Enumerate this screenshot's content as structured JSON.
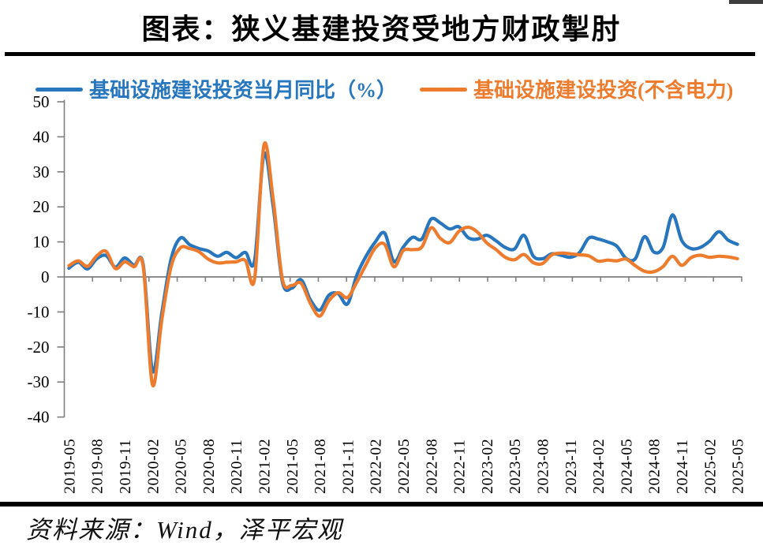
{
  "header": {
    "title": "图表：狭义基建投资受地方财政掣肘"
  },
  "legend": [
    {
      "label": "基础设施建设投资当月同比（%）",
      "color": "#2776BE"
    },
    {
      "label": "基础设施建设投资(不含电力)",
      "color": "#EE7C2F"
    }
  ],
  "footer": {
    "source": "资料来源：Wind，泽平宏观"
  },
  "chart_data": {
    "type": "line",
    "title": "图表：狭义基建投资受地方财政掣肘",
    "smoothed": true,
    "grid": "none",
    "legend_position": "top",
    "axis_color": "#7f7f7f",
    "ylim": [
      -40,
      50
    ],
    "y_ticks": [
      50,
      40,
      30,
      20,
      10,
      0,
      -10,
      -20,
      -30,
      -40
    ],
    "x_tick_labels": [
      "2019-05",
      "2019-08",
      "2019-11",
      "2020-02",
      "2020-05",
      "2020-08",
      "2020-11",
      "2021-02",
      "2021-05",
      "2021-08",
      "2021-11",
      "2022-02",
      "2022-05",
      "2022-08",
      "2022-11",
      "2023-02",
      "2023-05",
      "2023-08",
      "2023-11",
      "2024-02",
      "2024-05",
      "2024-08",
      "2024-11",
      "2025-02",
      "2025-05"
    ],
    "x": [
      "2019-05",
      "2019-06",
      "2019-07",
      "2019-08",
      "2019-09",
      "2019-10",
      "2019-11",
      "2019-12",
      "2020-01",
      "2020-02",
      "2020-03",
      "2020-04",
      "2020-05",
      "2020-06",
      "2020-07",
      "2020-08",
      "2020-09",
      "2020-10",
      "2020-11",
      "2020-12",
      "2021-01",
      "2021-02",
      "2021-03",
      "2021-04",
      "2021-05",
      "2021-06",
      "2021-07",
      "2021-08",
      "2021-09",
      "2021-10",
      "2021-11",
      "2021-12",
      "2022-01",
      "2022-02",
      "2022-03",
      "2022-04",
      "2022-05",
      "2022-06",
      "2022-07",
      "2022-08",
      "2022-09",
      "2022-10",
      "2022-11",
      "2022-12",
      "2023-01",
      "2023-02",
      "2023-03",
      "2023-04",
      "2023-05",
      "2023-06",
      "2023-07",
      "2023-08",
      "2023-09",
      "2023-10",
      "2023-11",
      "2023-12",
      "2024-01",
      "2024-02",
      "2024-03",
      "2024-04",
      "2024-05",
      "2024-06",
      "2024-07",
      "2024-08",
      "2024-09",
      "2024-10",
      "2024-11",
      "2024-12",
      "2025-01",
      "2025-02",
      "2025-03",
      "2025-04",
      "2025-05"
    ],
    "series": [
      {
        "name": "基础设施建设投资当月同比（%）",
        "color": "#2776BE",
        "values": [
          2.5,
          4.2,
          2.3,
          5.2,
          6.1,
          2.8,
          5.4,
          3.3,
          3.5,
          -26.9,
          -10.3,
          5.1,
          11.1,
          9.2,
          8.1,
          7.4,
          5.9,
          7.0,
          5.5,
          7.0,
          4.7,
          35.0,
          20.0,
          -1.5,
          -3.2,
          -0.8,
          -6.5,
          -9.5,
          -5.2,
          -4.8,
          -7.7,
          0.5,
          5.9,
          10.0,
          12.5,
          4.4,
          8.5,
          11.3,
          10.8,
          16.5,
          15.4,
          13.7,
          14.3,
          11.2,
          10.8,
          11.9,
          10.3,
          8.4,
          8.0,
          11.9,
          6.0,
          5.2,
          6.6,
          6.2,
          5.6,
          7.0,
          11.1,
          10.8,
          10.0,
          8.8,
          5.3,
          5.2,
          11.5,
          7.1,
          8.5,
          17.7,
          10.4,
          8.1,
          8.4,
          10.2,
          12.9,
          10.5,
          9.3
        ]
      },
      {
        "name": "基础设施建设投资(不含电力)",
        "color": "#EE7C2F",
        "values": [
          3.2,
          4.6,
          3.0,
          6.0,
          7.3,
          2.4,
          4.3,
          2.9,
          3.0,
          -30.8,
          -12.2,
          2.9,
          8.3,
          8.1,
          7.2,
          5.1,
          4.0,
          4.2,
          4.3,
          4.7,
          -0.5,
          37.6,
          22.0,
          -0.8,
          -2.4,
          -1.8,
          -7.5,
          -11.2,
          -6.8,
          -4.5,
          -5.9,
          -1.5,
          3.5,
          8.3,
          9.3,
          2.9,
          7.5,
          7.8,
          8.5,
          14.0,
          11.0,
          9.8,
          13.0,
          14.2,
          12.8,
          9.7,
          7.8,
          5.6,
          4.9,
          6.4,
          4.1,
          3.8,
          6.3,
          6.8,
          6.6,
          6.3,
          6.0,
          4.5,
          4.8,
          4.6,
          5.1,
          3.2,
          1.6,
          1.5,
          3.0,
          5.9,
          3.3,
          5.5,
          6.2,
          5.6,
          5.9,
          5.7,
          5.2
        ]
      }
    ]
  }
}
